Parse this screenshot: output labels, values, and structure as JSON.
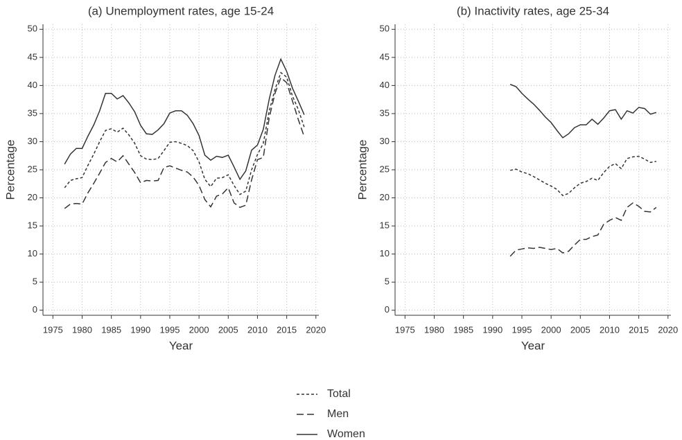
{
  "chart_data": [
    {
      "type": "line",
      "title": "(a) Unemployment rates, age 15-24",
      "x_label": "Year",
      "y_label": "Percentage",
      "xlim": [
        1973.3,
        2020.5
      ],
      "xticks": [
        1975,
        1980,
        1985,
        1990,
        1995,
        2000,
        2005,
        2010,
        2015,
        2020
      ],
      "ylim": [
        -0.9,
        50.9
      ],
      "yticks": [
        0,
        5,
        10,
        15,
        20,
        25,
        30,
        35,
        40,
        45,
        50
      ],
      "grid": true,
      "x": [
        1977,
        1978,
        1979,
        1980,
        1981,
        1982,
        1983,
        1984,
        1985,
        1986,
        1987,
        1988,
        1989,
        1990,
        1991,
        1992,
        1993,
        1994,
        1995,
        1996,
        1997,
        1998,
        1999,
        2000,
        2001,
        2002,
        2003,
        2004,
        2005,
        2006,
        2007,
        2008,
        2009,
        2010,
        2011,
        2012,
        2013,
        2014,
        2015,
        2016,
        2017,
        2018
      ],
      "series": [
        {
          "name": "Total",
          "color": "#333333",
          "dash": "4,3",
          "values": [
            21.8,
            23.1,
            23.4,
            23.6,
            25.8,
            27.8,
            30,
            32,
            32.3,
            31.7,
            32.4,
            31.2,
            29.7,
            27.5,
            26.9,
            26.8,
            27,
            28.4,
            29.9,
            30,
            29.7,
            29.3,
            28.4,
            26.4,
            23.3,
            22,
            23.5,
            23.6,
            24.1,
            22.2,
            20.6,
            21.2,
            25,
            27.7,
            29.7,
            35.4,
            39.3,
            42.3,
            41.5,
            38.1,
            35.7,
            32.6
          ]
        },
        {
          "name": "Men",
          "color": "#333333",
          "dash": "10,5",
          "values": [
            18.1,
            18.9,
            19,
            18.9,
            20.9,
            22.6,
            24.4,
            26.3,
            27,
            26.4,
            27.5,
            26,
            24.5,
            22.7,
            23.1,
            23,
            23.1,
            25.4,
            25.7,
            25.3,
            24.9,
            24.6,
            23.7,
            22.2,
            19.7,
            18.4,
            20.3,
            20.7,
            21.8,
            19.1,
            18.3,
            18.7,
            23.2,
            26.8,
            27.2,
            34.2,
            38.6,
            41.4,
            40.5,
            37.2,
            33.9,
            30.9
          ]
        },
        {
          "name": "Women",
          "color": "#333333",
          "dash": "none",
          "values": [
            26,
            27.8,
            28.8,
            28.8,
            31,
            33,
            35.5,
            38.6,
            38.6,
            37.6,
            38.2,
            36.9,
            35.3,
            32.9,
            31.4,
            31.3,
            32.1,
            33.2,
            35.1,
            35.5,
            35.5,
            34.7,
            33.2,
            31.1,
            27.6,
            26.7,
            27.4,
            27.2,
            27.6,
            25.5,
            23.3,
            24.8,
            28.5,
            29.4,
            32.2,
            37.5,
            41.8,
            44.7,
            42.5,
            39.5,
            37.2,
            34.8
          ]
        }
      ]
    },
    {
      "type": "line",
      "title": "(b) Inactivity rates, age 25-34",
      "x_label": "Year",
      "y_label": "Percentage",
      "xlim": [
        1973.3,
        2020.5
      ],
      "xticks": [
        1975,
        1980,
        1985,
        1990,
        1995,
        2000,
        2005,
        2010,
        2015,
        2020
      ],
      "ylim": [
        -0.9,
        50.9
      ],
      "yticks": [
        0,
        5,
        10,
        15,
        20,
        25,
        30,
        35,
        40,
        45,
        50
      ],
      "grid": true,
      "x": [
        1993,
        1994,
        1995,
        1996,
        1997,
        1998,
        1999,
        2000,
        2001,
        2002,
        2003,
        2004,
        2005,
        2006,
        2007,
        2008,
        2009,
        2010,
        2011,
        2012,
        2013,
        2014,
        2015,
        2016,
        2017,
        2018
      ],
      "series": [
        {
          "color": "#333333",
          "dash": "4,3",
          "values": [
            24.9,
            25.1,
            24.6,
            24.3,
            23.8,
            23.2,
            22.6,
            22.1,
            21.5,
            20.4,
            20.8,
            21.8,
            22.6,
            22.9,
            23.5,
            23.1,
            24.5,
            25.6,
            26.1,
            25.2,
            27,
            27.3,
            27.4,
            26.9,
            26.3,
            26.5
          ]
        },
        {
          "color": "#333333",
          "dash": "10,5",
          "values": [
            9.6,
            10.7,
            10.9,
            11.1,
            11,
            11.2,
            11,
            10.8,
            11,
            10.2,
            10.5,
            11.6,
            12.6,
            12.6,
            13.1,
            13.4,
            15.3,
            16,
            16.5,
            16,
            18.3,
            19.1,
            18.5,
            17.6,
            17.5,
            18.3
          ]
        },
        {
          "color": "#333333",
          "dash": "none",
          "values": [
            40.2,
            39.8,
            38.6,
            37.6,
            36.7,
            35.6,
            34.4,
            33.4,
            32,
            30.7,
            31.4,
            32.5,
            33,
            33,
            34,
            33.1,
            34.2,
            35.5,
            35.7,
            34,
            35.5,
            35.1,
            36.1,
            35.9,
            34.9,
            35.2
          ]
        }
      ]
    }
  ]
}
